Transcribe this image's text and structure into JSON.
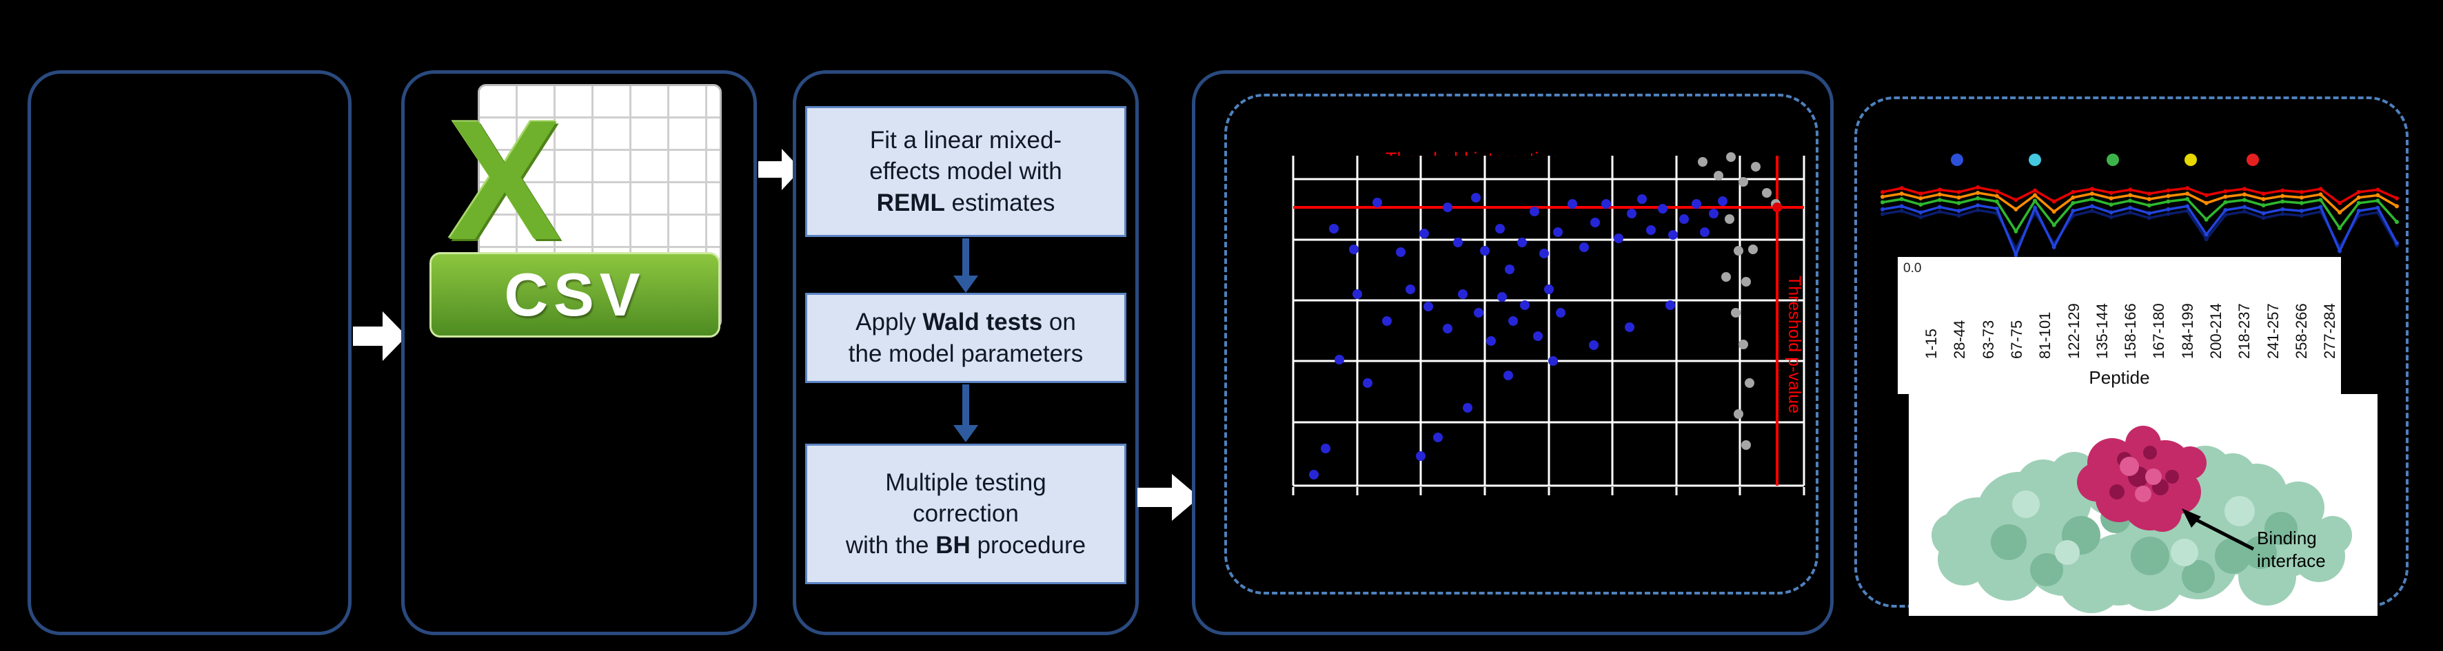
{
  "figure": {
    "csv_icon": {
      "letter": "X",
      "label": "CSV"
    },
    "steps": [
      {
        "lines": [
          [
            {
              "t": "Fit a linear mixed-"
            }
          ],
          [
            {
              "t": "effects model with"
            }
          ],
          [
            {
              "t": "REML",
              "b": true
            },
            {
              "t": " estimates"
            }
          ]
        ]
      },
      {
        "lines": [
          [
            {
              "t": "Apply "
            },
            {
              "t": "Wald tests",
              "b": true
            },
            {
              "t": " on"
            }
          ],
          [
            {
              "t": "the model parameters"
            }
          ]
        ]
      },
      {
        "lines": [
          [
            {
              "t": "Multiple testing"
            }
          ],
          [
            {
              "t": "correction"
            }
          ],
          [
            {
              "t": "with the "
            },
            {
              "t": "BH",
              "b": true
            },
            {
              "t": " procedure"
            }
          ]
        ]
      }
    ],
    "scatter": {
      "title": "Threshold interaction",
      "side_label": "Threshold p-value"
    },
    "peptide_axis": {
      "y_tick": "0.0",
      "x_label": "Peptide",
      "labels": [
        "1-15",
        "28-44",
        "63-73",
        "67-75",
        "81-101",
        "122-129",
        "135-144",
        "158-166",
        "167-180",
        "184-199",
        "200-214",
        "218-237",
        "241-257",
        "258-266",
        "277-284"
      ]
    },
    "binding_label": "Binding interface"
  },
  "colors": {
    "panel_border": "#2a4a7f",
    "dashed_border": "#4f81bd",
    "step_fill": "#dae3f3",
    "step_border": "#5b84c4",
    "threshold_red": "#ff0000",
    "point_blue": "#2626d8",
    "point_gray": "#a6a6a6",
    "csv_green": "#6fb12c"
  },
  "chart_data": [
    {
      "type": "scatter",
      "title": "Threshold interaction",
      "note": "Axis tick labels are not legible in the image; point coordinates are normalized 0-100 within the plot area (y measured from top).",
      "grid_v": [
        0,
        12.5,
        25,
        37.5,
        50,
        62.5,
        75,
        87.5,
        100
      ],
      "grid_h": [
        7.1,
        25.5,
        43.9,
        62.3,
        80.7,
        100
      ],
      "threshold_h_y": 15.6,
      "threshold_v_x": 94.8,
      "annotations": [
        "Threshold interaction",
        "Threshold p-value"
      ],
      "points_blue": [
        [
          7.9,
          22.2
        ],
        [
          11.9,
          28.3
        ],
        [
          16.5,
          14.2
        ],
        [
          21.0,
          29.2
        ],
        [
          25.6,
          23.6
        ],
        [
          30.2,
          15.6
        ],
        [
          32.3,
          26.4
        ],
        [
          35.7,
          12.7
        ],
        [
          37.5,
          28.8
        ],
        [
          40.5,
          22.2
        ],
        [
          42.4,
          34.4
        ],
        [
          44.8,
          26.4
        ],
        [
          47.3,
          17.0
        ],
        [
          49.1,
          29.7
        ],
        [
          51.8,
          23.1
        ],
        [
          54.6,
          14.6
        ],
        [
          57.0,
          27.8
        ],
        [
          59.1,
          20.3
        ],
        [
          61.3,
          14.6
        ],
        [
          63.7,
          25.0
        ],
        [
          66.2,
          17.5
        ],
        [
          68.3,
          13.2
        ],
        [
          70.1,
          22.6
        ],
        [
          72.3,
          16.0
        ],
        [
          74.4,
          24.1
        ],
        [
          76.5,
          19.3
        ],
        [
          79.0,
          14.6
        ],
        [
          80.5,
          23.1
        ],
        [
          82.3,
          17.5
        ],
        [
          84.1,
          13.7
        ],
        [
          22.9,
          40.6
        ],
        [
          26.5,
          45.8
        ],
        [
          30.2,
          52.4
        ],
        [
          33.2,
          42.0
        ],
        [
          36.3,
          47.6
        ],
        [
          38.7,
          56.1
        ],
        [
          40.9,
          42.9
        ],
        [
          43.0,
          50.0
        ],
        [
          45.4,
          45.3
        ],
        [
          47.9,
          54.7
        ],
        [
          50.0,
          40.6
        ],
        [
          52.4,
          47.6
        ],
        [
          9.1,
          61.8
        ],
        [
          14.6,
          68.9
        ],
        [
          12.5,
          42.0
        ],
        [
          18.3,
          50.0
        ],
        [
          25.0,
          91.0
        ],
        [
          28.4,
          85.4
        ],
        [
          34.1,
          76.4
        ],
        [
          42.1,
          66.5
        ],
        [
          50.9,
          62.3
        ],
        [
          58.8,
          57.5
        ],
        [
          65.9,
          51.9
        ],
        [
          73.8,
          45.3
        ],
        [
          4.0,
          96.7
        ],
        [
          6.4,
          88.7
        ]
      ],
      "points_gray": [
        [
          80.2,
          1.9
        ],
        [
          83.2,
          6.1
        ],
        [
          85.7,
          0.5
        ],
        [
          88.1,
          8.0
        ],
        [
          90.5,
          3.3
        ],
        [
          92.7,
          11.3
        ],
        [
          94.5,
          14.6
        ],
        [
          85.4,
          19.3
        ],
        [
          87.2,
          28.8
        ],
        [
          88.7,
          38.2
        ],
        [
          86.6,
          47.6
        ],
        [
          88.1,
          57.1
        ],
        [
          89.3,
          68.9
        ],
        [
          87.2,
          78.3
        ],
        [
          88.7,
          87.7
        ],
        [
          90.0,
          28.3
        ],
        [
          84.8,
          36.8
        ]
      ],
      "points_red": [
        [
          94.8,
          15.6
        ]
      ]
    },
    {
      "type": "line",
      "x_label": "Peptide",
      "x_categories": [
        "1-15",
        "28-44",
        "63-73",
        "67-75",
        "81-101",
        "122-129",
        "135-144",
        "158-166",
        "167-180",
        "184-199",
        "200-214",
        "218-237",
        "241-257",
        "258-266",
        "277-284"
      ],
      "y_tick_visible": "0.0",
      "units": "normalized 0-1 per point (0 = top of trace band, 1 = deepest dip)",
      "legend_dots": [
        "#2d50d8",
        "#45c8e0",
        "#3cb44b",
        "#e6d800",
        "#e62020"
      ],
      "legend_dot_x": [
        116,
        229,
        342,
        455,
        545
      ],
      "series": [
        {
          "name": "series-navy",
          "color": "#0b1d6e",
          "values": [
            0.48,
            0.44,
            0.52,
            0.45,
            0.5,
            0.43,
            0.47,
            0.92,
            0.46,
            0.86,
            0.5,
            0.44,
            0.52,
            0.46,
            0.53,
            0.48,
            0.44,
            0.8,
            0.49,
            0.45,
            0.53,
            0.48,
            0.5,
            0.45,
            0.9,
            0.5,
            0.46,
            0.88
          ]
        },
        {
          "name": "series-blue",
          "color": "#2244dd",
          "values": [
            0.42,
            0.38,
            0.46,
            0.39,
            0.44,
            0.37,
            0.41,
            1.0,
            0.4,
            0.9,
            0.44,
            0.38,
            0.46,
            0.4,
            0.47,
            0.42,
            0.38,
            0.74,
            0.43,
            0.39,
            0.47,
            0.42,
            0.44,
            0.39,
            0.95,
            0.44,
            0.4,
            0.85
          ]
        },
        {
          "name": "series-green",
          "color": "#2eb82e",
          "values": [
            0.33,
            0.29,
            0.36,
            0.3,
            0.34,
            0.28,
            0.32,
            0.7,
            0.31,
            0.62,
            0.34,
            0.29,
            0.36,
            0.31,
            0.37,
            0.32,
            0.29,
            0.55,
            0.33,
            0.3,
            0.37,
            0.32,
            0.34,
            0.3,
            0.66,
            0.34,
            0.31,
            0.58
          ]
        },
        {
          "name": "series-orange",
          "color": "#ff8c00",
          "values": [
            0.26,
            0.22,
            0.28,
            0.23,
            0.27,
            0.21,
            0.25,
            0.42,
            0.24,
            0.45,
            0.27,
            0.22,
            0.28,
            0.24,
            0.29,
            0.25,
            0.22,
            0.34,
            0.26,
            0.23,
            0.29,
            0.25,
            0.27,
            0.23,
            0.46,
            0.27,
            0.24,
            0.38
          ]
        },
        {
          "name": "series-red",
          "color": "#e60000",
          "values": [
            0.2,
            0.15,
            0.22,
            0.17,
            0.2,
            0.14,
            0.19,
            0.3,
            0.18,
            0.32,
            0.2,
            0.16,
            0.21,
            0.17,
            0.22,
            0.18,
            0.15,
            0.24,
            0.19,
            0.16,
            0.22,
            0.18,
            0.2,
            0.16,
            0.34,
            0.2,
            0.17,
            0.28
          ]
        }
      ]
    }
  ]
}
